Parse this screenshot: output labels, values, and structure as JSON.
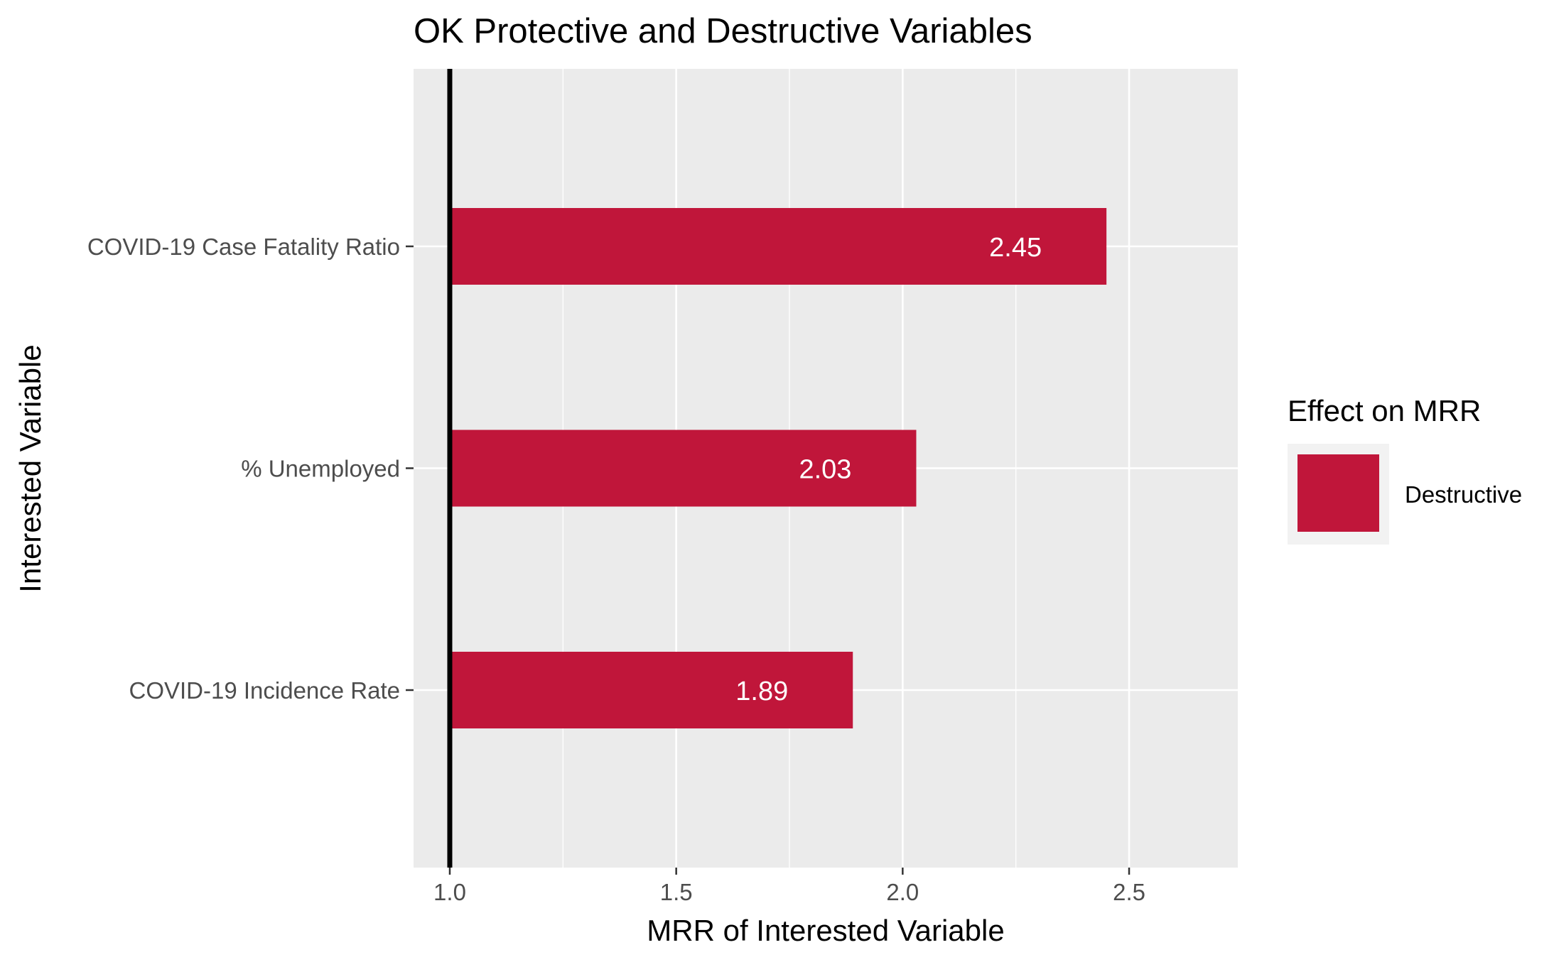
{
  "chart_data": {
    "type": "bar",
    "orientation": "horizontal",
    "title": "OK Protective and Destructive Variables",
    "xlabel": "MRR of Interested Variable",
    "ylabel": "Interested Variable",
    "categories": [
      "COVID-19 Case Fatality Ratio",
      "% Unemployed",
      "COVID-19 Incidence Rate"
    ],
    "values": [
      2.45,
      2.03,
      1.89
    ],
    "data_labels": [
      "2.45",
      "2.03",
      "1.89"
    ],
    "baseline": 1.0,
    "xlim": [
      0.92,
      2.74
    ],
    "xticks": [
      1.0,
      1.5,
      2.0,
      2.5
    ],
    "xtick_labels": [
      "1.0",
      "1.5",
      "2.0",
      "2.5"
    ],
    "grid": true,
    "legend": {
      "title": "Effect on MRR",
      "position": "right",
      "items": [
        {
          "label": "Destructive",
          "color": "#C0163A"
        }
      ]
    },
    "colors": {
      "bar": "#C0163A",
      "panel": "#EBEBEB",
      "grid": "#FFFFFF",
      "baseline": "#000000"
    }
  }
}
